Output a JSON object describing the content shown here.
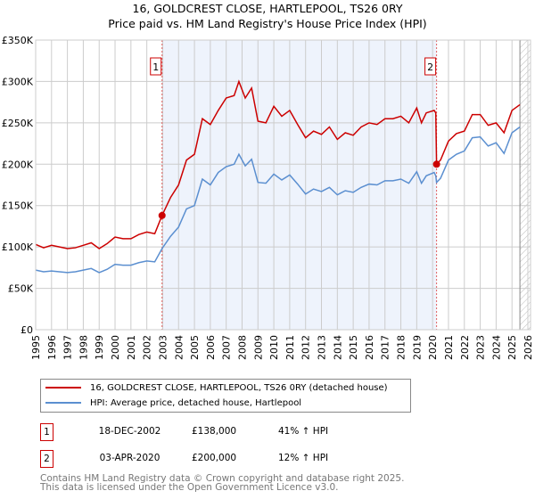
{
  "chart_data": {
    "type": "line",
    "title": "16, GOLDCREST CLOSE, HARTLEPOOL, TS26 0RY",
    "subtitle": "Price paid vs. HM Land Registry's House Price Index (HPI)",
    "xlim": [
      1995,
      2026
    ],
    "ylim": [
      0,
      350000
    ],
    "y_ticks": [
      {
        "v": 0,
        "label": "£0"
      },
      {
        "v": 50000,
        "label": "£50K"
      },
      {
        "v": 100000,
        "label": "£100K"
      },
      {
        "v": 150000,
        "label": "£150K"
      },
      {
        "v": 200000,
        "label": "£200K"
      },
      {
        "v": 250000,
        "label": "£250K"
      },
      {
        "v": 300000,
        "label": "£300K"
      },
      {
        "v": 350000,
        "label": "£350K"
      }
    ],
    "x_ticks": [
      "1995",
      "1996",
      "1997",
      "1998",
      "1999",
      "2000",
      "2001",
      "2002",
      "2003",
      "2004",
      "2005",
      "2006",
      "2007",
      "2008",
      "2009",
      "2010",
      "2011",
      "2012",
      "2013",
      "2014",
      "2015",
      "2016",
      "2017",
      "2018",
      "2019",
      "2020",
      "2021",
      "2022",
      "2023",
      "2024",
      "2025",
      "2026"
    ],
    "grid": true,
    "shaded_range": [
      2002.96,
      2020.25
    ],
    "forecast_hatch_from": 2025.5,
    "series": [
      {
        "name": "16, GOLDCREST CLOSE, HARTLEPOOL, TS26 0RY (detached house)",
        "color": "#cc0000",
        "x": [
          1995,
          1995.5,
          1996,
          1996.5,
          1997,
          1997.5,
          1998,
          1998.5,
          1999,
          1999.5,
          2000,
          2000.5,
          2001,
          2001.5,
          2002,
          2002.5,
          2002.96,
          2003.5,
          2004,
          2004.5,
          2005,
          2005.5,
          2006,
          2006.5,
          2007,
          2007.5,
          2007.8,
          2008.2,
          2008.6,
          2009,
          2009.5,
          2010,
          2010.5,
          2011,
          2011.5,
          2012,
          2012.5,
          2013,
          2013.5,
          2014,
          2014.5,
          2015,
          2015.5,
          2016,
          2016.5,
          2017,
          2017.5,
          2018,
          2018.5,
          2019,
          2019.3,
          2019.6,
          2020.1,
          2020.2,
          2020.25,
          2020.5,
          2021,
          2021.5,
          2022,
          2022.5,
          2023,
          2023.5,
          2024,
          2024.5,
          2025,
          2025.5
        ],
        "y": [
          103000,
          99000,
          102000,
          100000,
          98000,
          99000,
          102000,
          105000,
          98000,
          104000,
          112000,
          110000,
          110000,
          115000,
          118000,
          116000,
          138000,
          160000,
          175000,
          205000,
          212000,
          255000,
          248000,
          265000,
          280000,
          283000,
          300000,
          280000,
          292000,
          252000,
          250000,
          270000,
          258000,
          265000,
          248000,
          232000,
          240000,
          236000,
          245000,
          230000,
          238000,
          235000,
          245000,
          250000,
          248000,
          255000,
          255000,
          258000,
          250000,
          268000,
          250000,
          262000,
          265000,
          262000,
          200000,
          205000,
          228000,
          237000,
          240000,
          260000,
          260000,
          247000,
          250000,
          238000,
          265000,
          272000
        ]
      },
      {
        "name": "HPI: Average price, detached house, Hartlepool",
        "color": "#5b8fd0",
        "x": [
          1995,
          1995.5,
          1996,
          1996.5,
          1997,
          1997.5,
          1998,
          1998.5,
          1999,
          1999.5,
          2000,
          2000.5,
          2001,
          2001.5,
          2002,
          2002.5,
          2002.96,
          2003.5,
          2004,
          2004.5,
          2005,
          2005.5,
          2006,
          2006.5,
          2007,
          2007.5,
          2007.8,
          2008.2,
          2008.6,
          2009,
          2009.5,
          2010,
          2010.5,
          2011,
          2011.5,
          2012,
          2012.5,
          2013,
          2013.5,
          2014,
          2014.5,
          2015,
          2015.5,
          2016,
          2016.5,
          2017,
          2017.5,
          2018,
          2018.5,
          2019,
          2019.3,
          2019.6,
          2020.1,
          2020.2,
          2020.25,
          2020.5,
          2021,
          2021.5,
          2022,
          2022.5,
          2023,
          2023.5,
          2024,
          2024.5,
          2025,
          2025.5
        ],
        "y": [
          72000,
          70000,
          71000,
          70000,
          69000,
          70000,
          72000,
          74000,
          69000,
          73000,
          79000,
          78000,
          78000,
          81000,
          83000,
          82000,
          98000,
          113000,
          124000,
          146000,
          150000,
          182000,
          175000,
          190000,
          197000,
          200000,
          212000,
          198000,
          206000,
          178000,
          177000,
          188000,
          181000,
          187000,
          176000,
          164000,
          170000,
          167000,
          172000,
          163000,
          168000,
          166000,
          172000,
          176000,
          175000,
          180000,
          180000,
          182000,
          177000,
          191000,
          177000,
          186000,
          190000,
          186000,
          178000,
          183000,
          205000,
          212000,
          216000,
          232000,
          233000,
          222000,
          226000,
          213000,
          238000,
          245000
        ]
      }
    ],
    "sales": [
      {
        "id": "1",
        "x": 2002.96,
        "y": 138000
      },
      {
        "id": "2",
        "x": 2020.25,
        "y": 200000
      }
    ]
  },
  "table": [
    {
      "id": "1",
      "date": "18-DEC-2002",
      "price": "£138,000",
      "hpi": "41% ↑ HPI"
    },
    {
      "id": "2",
      "date": "03-APR-2020",
      "price": "£200,000",
      "hpi": "12% ↑ HPI"
    }
  ],
  "footer": {
    "line1": "Contains HM Land Registry data © Crown copyright and database right 2025.",
    "line2": "This data is licensed under the Open Government Licence v3.0."
  }
}
